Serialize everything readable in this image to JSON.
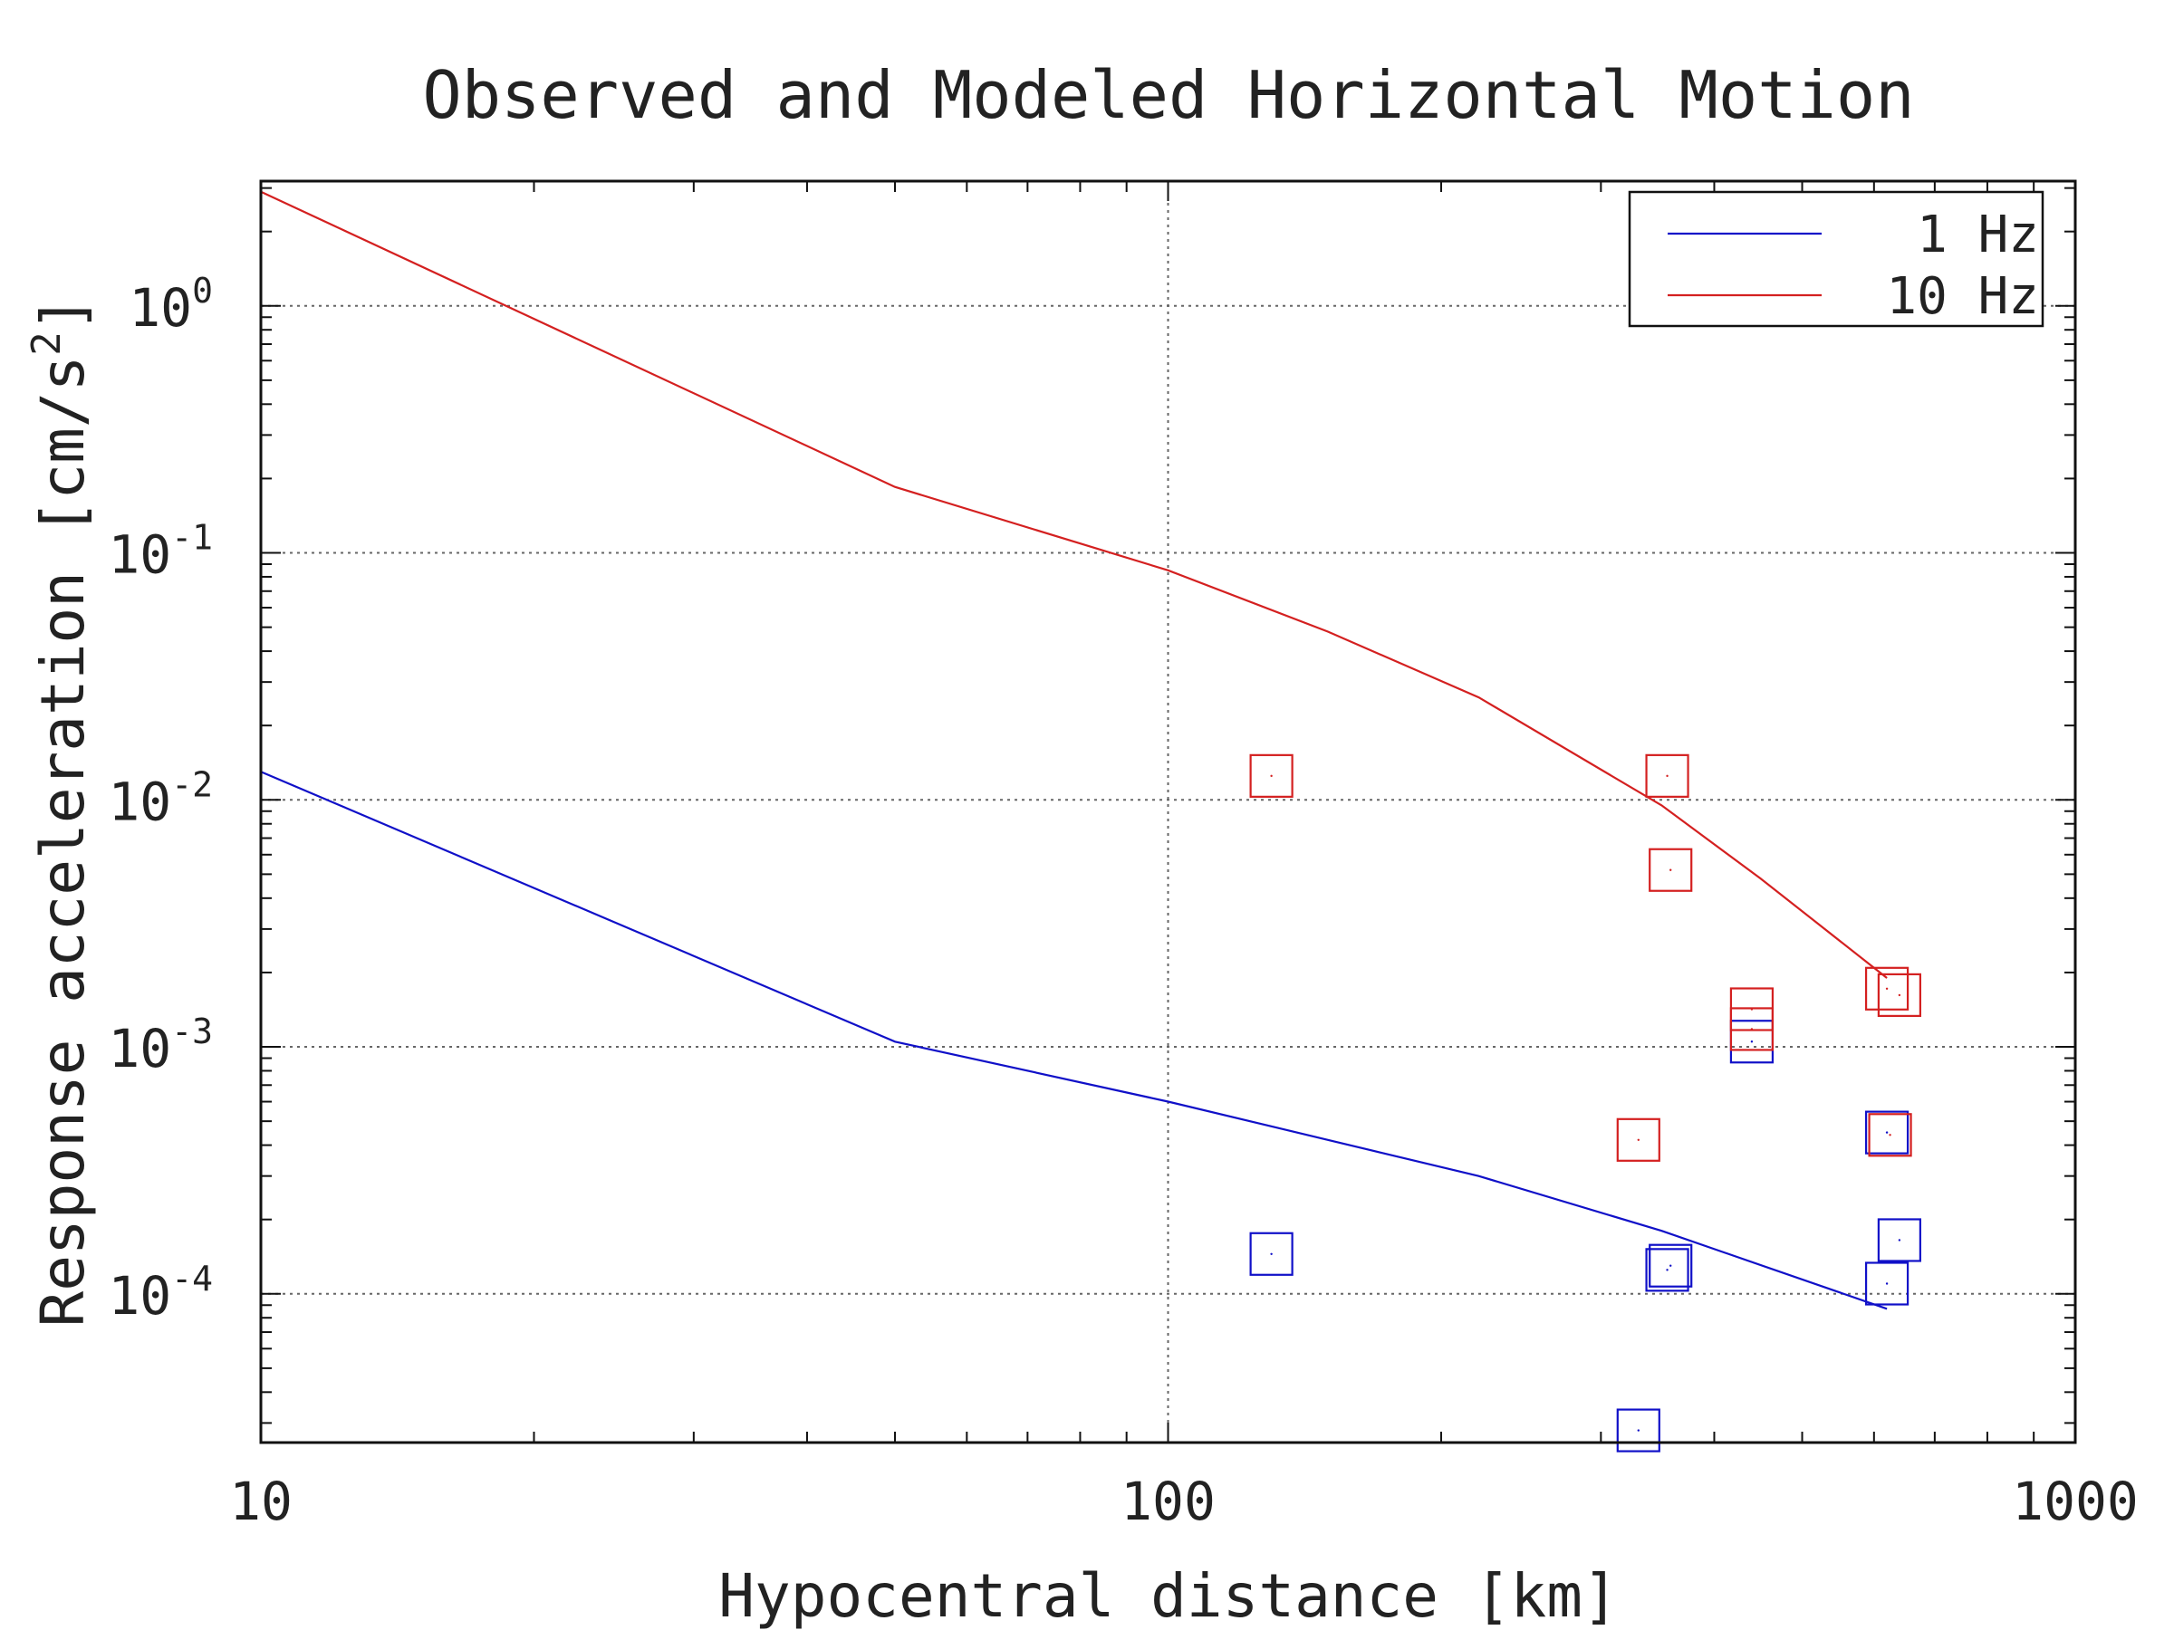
{
  "chart_data": {
    "type": "scatter",
    "title": "Observed and Modeled Horizontal Motion",
    "xlabel": "Hypocentral distance [km]",
    "ylabel": "Response acceleration [cm/s",
    "ylabel_sup": "2",
    "ylabel_end": "]",
    "xscale": "log",
    "yscale": "log",
    "xlim": [
      10,
      1000
    ],
    "ylim": [
      2.5e-05,
      3.2
    ],
    "grid": true,
    "legend_position": "top-right",
    "x_ticks": [
      {
        "value": 10,
        "label": "10"
      },
      {
        "value": 100,
        "label": "100"
      },
      {
        "value": 1000,
        "label": "1000"
      }
    ],
    "y_ticks": [
      {
        "value": 1,
        "base": "10",
        "exp": "0"
      },
      {
        "value": 0.1,
        "base": "10",
        "exp": "-1"
      },
      {
        "value": 0.01,
        "base": "10",
        "exp": "-2"
      },
      {
        "value": 0.001,
        "base": "10",
        "exp": "-3"
      },
      {
        "value": 0.0001,
        "base": "10",
        "exp": "-4"
      }
    ],
    "series": [
      {
        "name": "1 Hz",
        "color": "#1010c8",
        "model_line": [
          [
            10,
            0.013
          ],
          [
            50,
            0.00105
          ],
          [
            100,
            0.0006
          ],
          [
            150,
            0.00042
          ],
          [
            220,
            0.0003
          ],
          [
            350,
            0.00018
          ],
          [
            620,
            8.7e-05
          ]
        ],
        "observed": [
          [
            130,
            0.000145
          ],
          [
            330,
            2.8e-05
          ],
          [
            355,
            0.000125
          ],
          [
            358,
            0.00013
          ],
          [
            440,
            0.00105
          ],
          [
            620,
            0.00045
          ],
          [
            620,
            0.00011
          ],
          [
            640,
            0.000165
          ]
        ]
      },
      {
        "name": "10 Hz",
        "color": "#d42020",
        "model_line": [
          [
            10,
            2.9
          ],
          [
            50,
            0.185
          ],
          [
            100,
            0.085
          ],
          [
            150,
            0.048
          ],
          [
            220,
            0.026
          ],
          [
            350,
            0.0095
          ],
          [
            450,
            0.0048
          ],
          [
            620,
            0.0019
          ]
        ],
        "observed": [
          [
            130,
            0.0125
          ],
          [
            330,
            0.00042
          ],
          [
            355,
            0.0125
          ],
          [
            358,
            0.0052
          ],
          [
            440,
            0.00118
          ],
          [
            440,
            0.00142
          ],
          [
            620,
            0.00172
          ],
          [
            625,
            0.00044
          ],
          [
            640,
            0.00162
          ]
        ]
      }
    ]
  }
}
